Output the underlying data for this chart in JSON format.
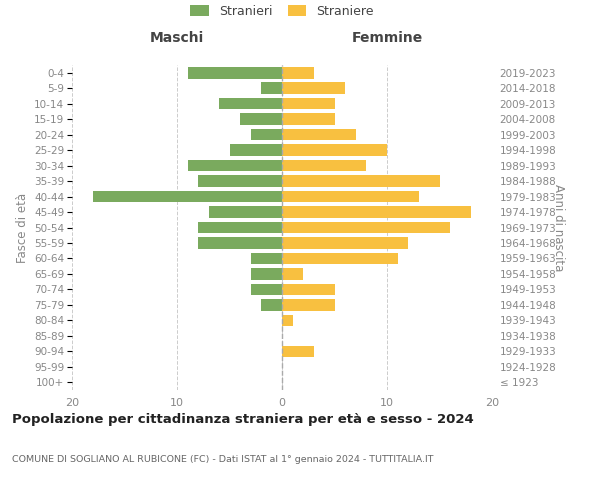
{
  "age_groups": [
    "100+",
    "95-99",
    "90-94",
    "85-89",
    "80-84",
    "75-79",
    "70-74",
    "65-69",
    "60-64",
    "55-59",
    "50-54",
    "45-49",
    "40-44",
    "35-39",
    "30-34",
    "25-29",
    "20-24",
    "15-19",
    "10-14",
    "5-9",
    "0-4"
  ],
  "birth_years": [
    "≤ 1923",
    "1924-1928",
    "1929-1933",
    "1934-1938",
    "1939-1943",
    "1944-1948",
    "1949-1953",
    "1954-1958",
    "1959-1963",
    "1964-1968",
    "1969-1973",
    "1974-1978",
    "1979-1983",
    "1984-1988",
    "1989-1993",
    "1994-1998",
    "1999-2003",
    "2004-2008",
    "2009-2013",
    "2014-2018",
    "2019-2023"
  ],
  "maschi": [
    0,
    0,
    0,
    0,
    0,
    2,
    3,
    3,
    3,
    8,
    8,
    7,
    18,
    8,
    9,
    5,
    3,
    4,
    6,
    2,
    9
  ],
  "femmine": [
    0,
    0,
    3,
    0,
    1,
    5,
    5,
    2,
    11,
    12,
    16,
    18,
    13,
    15,
    8,
    10,
    7,
    5,
    5,
    6,
    3
  ],
  "maschi_color": "#7aaa5e",
  "femmine_color": "#f8c040",
  "xlim": 20,
  "title": "Popolazione per cittadinanza straniera per età e sesso - 2024",
  "subtitle": "COMUNE DI SOGLIANO AL RUBICONE (FC) - Dati ISTAT al 1° gennaio 2024 - TUTTITALIA.IT",
  "xlabel_left": "Maschi",
  "xlabel_right": "Femmine",
  "ylabel_left": "Fasce di età",
  "ylabel_right": "Anni di nascita",
  "legend_stranieri": "Stranieri",
  "legend_straniere": "Straniere",
  "background_color": "#ffffff",
  "grid_color": "#cccccc"
}
